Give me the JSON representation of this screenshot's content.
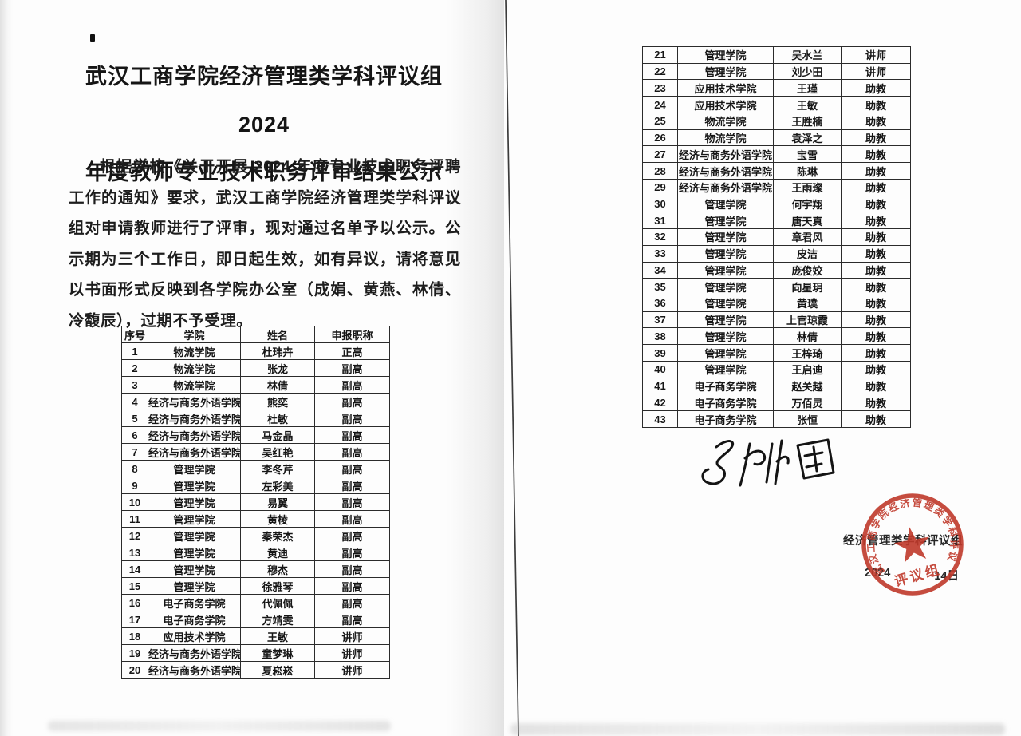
{
  "document": {
    "title_line1": "武汉工商学院经济管理类学科评议组 2024",
    "title_line2": "年度教师专业技术职务评审结果公示",
    "body_paragraph": "根据学校《关于开展 2024 年度专业技术职务评聘工作的通知》要求，武汉工商学院经济管理类学科评议组对申请教师进行了评审，现对通过名单予以公示。公示期为三个工作日，即日起生效，如有异议，请将意见以书面形式反映到各学院办公室（成娟、黄燕、林倩、冷馥辰），过期不予受理。"
  },
  "left_table": {
    "headers": [
      "序号",
      "学院",
      "姓名",
      "申报职称"
    ],
    "rows": [
      [
        "1",
        "物流学院",
        "杜玮卉",
        "正高"
      ],
      [
        "2",
        "物流学院",
        "张龙",
        "副高"
      ],
      [
        "3",
        "物流学院",
        "林倩",
        "副高"
      ],
      [
        "4",
        "经济与商务外语学院",
        "熊奕",
        "副高"
      ],
      [
        "5",
        "经济与商务外语学院",
        "杜敏",
        "副高"
      ],
      [
        "6",
        "经济与商务外语学院",
        "马金晶",
        "副高"
      ],
      [
        "7",
        "经济与商务外语学院",
        "吴红艳",
        "副高"
      ],
      [
        "8",
        "管理学院",
        "李冬芹",
        "副高"
      ],
      [
        "9",
        "管理学院",
        "左彩美",
        "副高"
      ],
      [
        "10",
        "管理学院",
        "易翼",
        "副高"
      ],
      [
        "11",
        "管理学院",
        "黄棱",
        "副高"
      ],
      [
        "12",
        "管理学院",
        "秦荣杰",
        "副高"
      ],
      [
        "13",
        "管理学院",
        "黄迪",
        "副高"
      ],
      [
        "14",
        "管理学院",
        "穆杰",
        "副高"
      ],
      [
        "15",
        "管理学院",
        "徐雅琴",
        "副高"
      ],
      [
        "16",
        "电子商务学院",
        "代佩佩",
        "副高"
      ],
      [
        "17",
        "电子商务学院",
        "方靖雯",
        "副高"
      ],
      [
        "18",
        "应用技术学院",
        "王敏",
        "讲师"
      ],
      [
        "19",
        "经济与商务外语学院",
        "童梦琳",
        "讲师"
      ],
      [
        "20",
        "经济与商务外语学院",
        "夏崧崧",
        "讲师"
      ]
    ]
  },
  "right_table": {
    "rows": [
      [
        "21",
        "管理学院",
        "吴水兰",
        "讲师"
      ],
      [
        "22",
        "管理学院",
        "刘少田",
        "讲师"
      ],
      [
        "23",
        "应用技术学院",
        "王瑾",
        "助教"
      ],
      [
        "24",
        "应用技术学院",
        "王敏",
        "助教"
      ],
      [
        "25",
        "物流学院",
        "王胜楠",
        "助教"
      ],
      [
        "26",
        "物流学院",
        "袁泽之",
        "助教"
      ],
      [
        "27",
        "经济与商务外语学院",
        "宝雪",
        "助教"
      ],
      [
        "28",
        "经济与商务外语学院",
        "陈琳",
        "助教"
      ],
      [
        "29",
        "经济与商务外语学院",
        "王雨璨",
        "助教"
      ],
      [
        "30",
        "管理学院",
        "何宇翔",
        "助教"
      ],
      [
        "31",
        "管理学院",
        "唐天真",
        "助教"
      ],
      [
        "32",
        "管理学院",
        "章君风",
        "助教"
      ],
      [
        "33",
        "管理学院",
        "皮洁",
        "助教"
      ],
      [
        "34",
        "管理学院",
        "庞俊姣",
        "助教"
      ],
      [
        "35",
        "管理学院",
        "向星玥",
        "助教"
      ],
      [
        "36",
        "管理学院",
        "黄璞",
        "助教"
      ],
      [
        "37",
        "管理学院",
        "上官琼霞",
        "助教"
      ],
      [
        "38",
        "管理学院",
        "林倩",
        "助教"
      ],
      [
        "39",
        "管理学院",
        "王梓琦",
        "助教"
      ],
      [
        "40",
        "管理学院",
        "王启迪",
        "助教"
      ],
      [
        "41",
        "电子商务学院",
        "赵关越",
        "助教"
      ],
      [
        "42",
        "电子商务学院",
        "万佰灵",
        "助教"
      ],
      [
        "43",
        "电子商务学院",
        "张恒",
        "助教"
      ]
    ]
  },
  "signature": {
    "text": "张兆国"
  },
  "stamp": {
    "ring_text": "武汉工商学院经济管理类学科评议组",
    "banner_text": "评议组",
    "color": "#c0392b"
  },
  "overlay": {
    "org_line": "经济管理类学科评议组",
    "date_prefix": "2024",
    "date_suffix": "14日"
  }
}
